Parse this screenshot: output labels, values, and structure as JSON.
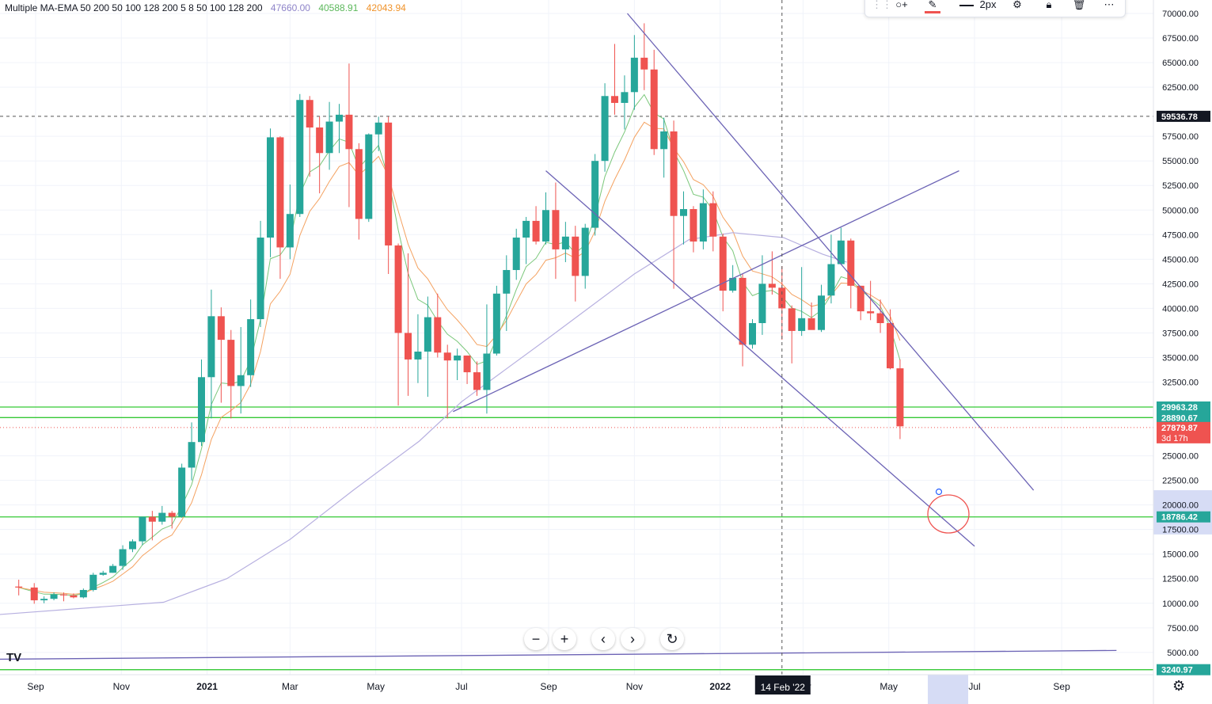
{
  "legend": {
    "indicator": "Multiple MA-EMA 50 200 50 100 128 200 5 8 50 100 128 200",
    "values": [
      {
        "text": "47660.00",
        "color": "#8e84c9"
      },
      {
        "text": "40588.91",
        "color": "#5cb85c"
      },
      {
        "text": "42043.94",
        "color": "#f0932b"
      }
    ]
  },
  "toolbar": {
    "width_label": "2px",
    "items": [
      "drag-handle-icon",
      "add-object-icon",
      "pencil-icon",
      "line-width-icon",
      "settings-icon",
      "lock-icon",
      "trash-icon",
      "more-icon"
    ]
  },
  "nav": [
    "minus-icon",
    "plus-icon",
    "chevron-left-icon",
    "chevron-right-icon",
    "reset-icon"
  ],
  "colors": {
    "up": "#26a69a",
    "down": "#ef5350",
    "grid": "#f0f3fa",
    "sma50": "#b7b0e0",
    "ema5": "#7ac77a",
    "ema8": "#f4a261",
    "trendline": "#6c63b5",
    "hline": "#35c935"
  },
  "chart_data": {
    "type": "candlestick",
    "title": "",
    "ylim": [
      2000,
      71000
    ],
    "y_ticks": [
      "70000.00",
      "67500.00",
      "65000.00",
      "62500.00",
      "57500.00",
      "55000.00",
      "52500.00",
      "50000.00",
      "47500.00",
      "45000.00",
      "42500.00",
      "40000.00",
      "37500.00",
      "35000.00",
      "32500.00",
      "25000.00",
      "22500.00",
      "20000.00",
      "17500.00",
      "15000.00",
      "12500.00",
      "10000.00",
      "7500.00",
      "5000.00"
    ],
    "x_ticks": [
      {
        "label": "Sep",
        "date": "2020-09-01"
      },
      {
        "label": "Nov",
        "date": "2020-11-01"
      },
      {
        "label": "2021",
        "date": "2021-01-01",
        "bold": true
      },
      {
        "label": "Mar",
        "date": "2021-03-01"
      },
      {
        "label": "May",
        "date": "2021-05-01"
      },
      {
        "label": "Jul",
        "date": "2021-07-01"
      },
      {
        "label": "Sep",
        "date": "2021-09-01"
      },
      {
        "label": "Nov",
        "date": "2021-11-01"
      },
      {
        "label": "2022",
        "date": "2022-01-01",
        "bold": true
      },
      {
        "label": "Mar",
        "date": "2022-03-01"
      },
      {
        "label": "May",
        "date": "2022-05-01"
      },
      {
        "label": "Jul",
        "date": "2022-07-01"
      },
      {
        "label": "Sep",
        "date": "2022-09-01"
      }
    ],
    "crosshair": {
      "x_label": "14 Feb '22",
      "date": "2022-02-14",
      "y_value": 59536.78,
      "y_label": "59536.78"
    },
    "price_labels": [
      {
        "text": "29963.28",
        "value": 29963.28,
        "color": "#26a69a"
      },
      {
        "text": "28890.67",
        "value": 28890.67,
        "color": "#26a69a"
      },
      {
        "text": "18786.42",
        "value": 18786.42,
        "color": "#26a69a"
      },
      {
        "text": "3240.97",
        "value": 3240.97,
        "color": "#26a69a"
      }
    ],
    "last_price": {
      "text": "27879.87",
      "countdown": "3d 17h",
      "value": 27879.87,
      "color": "#ef5350"
    },
    "highlight_band": [
      17000,
      21500
    ],
    "horizontal_lines": [
      29963.28,
      28890.67,
      18786.42,
      3240.97
    ],
    "trendlines": [
      {
        "from": [
          "2021-10-27",
          70000
        ],
        "to": [
          "2022-08-12",
          21500
        ]
      },
      {
        "from": [
          "2021-08-30",
          54000
        ],
        "to": [
          "2022-07-01",
          15800
        ]
      },
      {
        "from": [
          "2021-06-25",
          29500
        ],
        "to": [
          "2022-06-20",
          54000
        ]
      },
      {
        "from": [
          "2020-08-01",
          4300
        ],
        "to": [
          "2022-10-10",
          5200
        ]
      }
    ],
    "series": [
      {
        "type": "ohlc",
        "dates": [
          "2020-08-20",
          "2020-08-31",
          "2020-09-07",
          "2020-09-14",
          "2020-09-21",
          "2020-09-28",
          "2020-10-05",
          "2020-10-12",
          "2020-10-19",
          "2020-10-26",
          "2020-11-02",
          "2020-11-09",
          "2020-11-16",
          "2020-11-23",
          "2020-11-30",
          "2020-12-07",
          "2020-12-14",
          "2020-12-21",
          "2020-12-28",
          "2021-01-04",
          "2021-01-11",
          "2021-01-18",
          "2021-01-25",
          "2021-02-01",
          "2021-02-08",
          "2021-02-15",
          "2021-02-22",
          "2021-03-01",
          "2021-03-08",
          "2021-03-15",
          "2021-03-22",
          "2021-03-29",
          "2021-04-05",
          "2021-04-12",
          "2021-04-19",
          "2021-04-26",
          "2021-05-03",
          "2021-05-10",
          "2021-05-17",
          "2021-05-24",
          "2021-05-31",
          "2021-06-07",
          "2021-06-14",
          "2021-06-21",
          "2021-06-28",
          "2021-07-05",
          "2021-07-12",
          "2021-07-19",
          "2021-07-26",
          "2021-08-02",
          "2021-08-09",
          "2021-08-16",
          "2021-08-23",
          "2021-08-30",
          "2021-09-06",
          "2021-09-13",
          "2021-09-20",
          "2021-09-27",
          "2021-10-04",
          "2021-10-11",
          "2021-10-18",
          "2021-10-25",
          "2021-11-01",
          "2021-11-08",
          "2021-11-15",
          "2021-11-22",
          "2021-11-29",
          "2021-12-06",
          "2021-12-13",
          "2021-12-20",
          "2021-12-27",
          "2022-01-03",
          "2022-01-10",
          "2022-01-17",
          "2022-01-24",
          "2022-01-31",
          "2022-02-07",
          "2022-02-14",
          "2022-02-21",
          "2022-02-28",
          "2022-03-07",
          "2022-03-14",
          "2022-03-21",
          "2022-03-28",
          "2022-04-04",
          "2022-04-11",
          "2022-04-18",
          "2022-04-25",
          "2022-05-02",
          "2022-05-09"
        ],
        "open": [
          11700,
          11600,
          10300,
          10450,
          10900,
          10800,
          10600,
          11350,
          12900,
          13100,
          13800,
          15500,
          16300,
          18800,
          18300,
          19200,
          18800,
          23800,
          26400,
          33000,
          39200,
          36800,
          32100,
          33200,
          38900,
          47200,
          57400,
          46200,
          49600,
          61200,
          58400,
          55800,
          59000,
          59700,
          56200,
          49100,
          57700,
          58900,
          46400,
          37500,
          34800,
          35600,
          39100,
          35500,
          34700,
          35200,
          33500,
          31700,
          35400,
          41500,
          43900,
          47200,
          48900,
          46800,
          50000,
          46000,
          47300,
          43300,
          48200,
          55000,
          61600,
          60900,
          62000,
          65500,
          64300,
          56200,
          58000,
          49400,
          50100,
          46800,
          50700,
          47300,
          41800,
          43100,
          36300,
          38500,
          42500,
          42100,
          40000,
          37700,
          39000,
          37800,
          41300,
          44500,
          46900,
          42300,
          39700,
          39500,
          38500,
          33900
        ],
        "close": [
          11600,
          10300,
          10450,
          10900,
          10800,
          10600,
          11350,
          12900,
          13100,
          13800,
          15500,
          16300,
          18800,
          18300,
          19200,
          18800,
          23800,
          26400,
          33000,
          39200,
          36800,
          32100,
          33200,
          38900,
          47200,
          57400,
          46200,
          49600,
          61200,
          58400,
          55800,
          59000,
          59700,
          56200,
          49100,
          57700,
          58900,
          46400,
          37500,
          34800,
          35600,
          39100,
          35500,
          34700,
          35200,
          33500,
          31700,
          35400,
          41500,
          43900,
          47200,
          48900,
          46800,
          50000,
          46000,
          47300,
          43300,
          48200,
          55000,
          61600,
          60900,
          62000,
          65500,
          64300,
          56200,
          58000,
          49400,
          50100,
          46800,
          50700,
          47300,
          41800,
          43100,
          36300,
          38500,
          42500,
          42100,
          40000,
          37700,
          39000,
          37800,
          41300,
          44500,
          46900,
          42300,
          39700,
          39500,
          38500,
          33900,
          28000
        ],
        "high": [
          12400,
          12050,
          10700,
          11100,
          11100,
          11000,
          11500,
          13100,
          13300,
          14000,
          15900,
          16500,
          18800,
          19400,
          19900,
          19400,
          24200,
          28400,
          34800,
          41900,
          40100,
          37800,
          38100,
          40900,
          48900,
          58300,
          57500,
          52600,
          61800,
          61600,
          59500,
          61000,
          60800,
          64900,
          56800,
          57800,
          59500,
          59500,
          46600,
          45600,
          39400,
          41200,
          41500,
          36300,
          35900,
          35200,
          34600,
          40400,
          42300,
          45400,
          48100,
          49300,
          50400,
          51800,
          52800,
          48800,
          48400,
          48600,
          55700,
          62900,
          66900,
          63700,
          67800,
          69000,
          66300,
          59400,
          59100,
          51900,
          50400,
          52100,
          51900,
          47600,
          44400,
          43500,
          38900,
          45400,
          45800,
          44300,
          40300,
          44200,
          40600,
          42400,
          47500,
          48200,
          47100,
          42300,
          42800,
          40900,
          39900,
          34800
        ],
        "low": [
          10800,
          9950,
          10000,
          10300,
          10200,
          10500,
          10500,
          11200,
          12800,
          13100,
          13400,
          15200,
          15900,
          16400,
          18000,
          17600,
          18700,
          22500,
          26000,
          28800,
          30400,
          28800,
          29300,
          32000,
          38100,
          45200,
          43000,
          45000,
          49300,
          53400,
          51700,
          54100,
          55800,
          50300,
          47000,
          48800,
          56000,
          43500,
          30100,
          31100,
          32400,
          31000,
          35000,
          28800,
          32700,
          32300,
          31100,
          29300,
          35200,
          37700,
          42900,
          44500,
          46500,
          46500,
          43000,
          44700,
          40700,
          42000,
          47400,
          53900,
          59700,
          58200,
          60200,
          62200,
          55600,
          53300,
          42000,
          46500,
          45700,
          46000,
          45800,
          39700,
          41600,
          34100,
          35900,
          37300,
          41400,
          36800,
          34400,
          37200,
          37900,
          37600,
          40500,
          44700,
          40000,
          38800,
          38800,
          37500,
          33800,
          26700
        ]
      },
      {
        "name": "",
        "type": "sma50",
        "color": "#b7b0e0",
        "dates": [
          "2020-08-01",
          "2020-12-01",
          "2021-01-15",
          "2021-03-01",
          "2021-04-15",
          "2021-06-01",
          "2021-07-01",
          "2021-09-01",
          "2021-11-01",
          "2021-12-10",
          "2022-01-10",
          "2022-02-15",
          "2022-03-15",
          "2022-04-01"
        ],
        "values": [
          8800,
          10100,
          12500,
          16500,
          21500,
          26500,
          30500,
          37000,
          43500,
          47000,
          47700,
          47200,
          45500,
          44700
        ]
      }
    ]
  }
}
